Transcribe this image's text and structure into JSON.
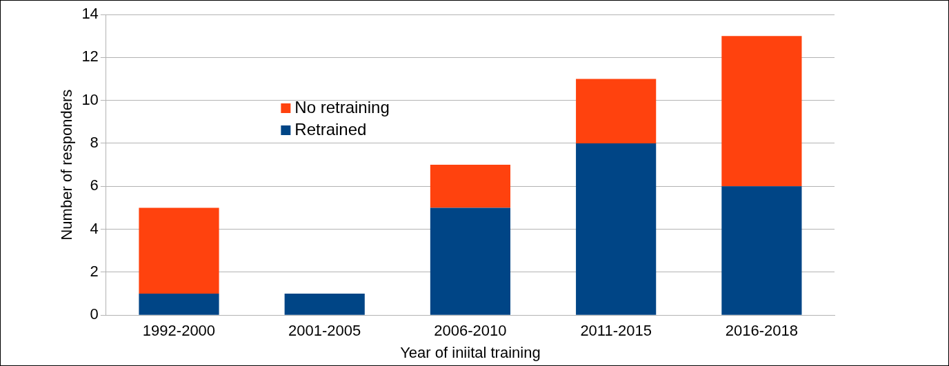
{
  "chart_data": {
    "type": "bar",
    "stacked": true,
    "xlabel": "Year of iniital training",
    "ylabel": "Number of responders",
    "categories": [
      "1992-2000",
      "2001-2005",
      "2006-2010",
      "2011-2015",
      "2016-2018"
    ],
    "series": [
      {
        "name": "Retrained",
        "color": "#004586",
        "values": [
          1,
          1,
          5,
          8,
          6
        ]
      },
      {
        "name": "No retraining",
        "color": "#ff420e",
        "values": [
          4,
          0,
          2,
          3,
          7
        ]
      }
    ],
    "ylim": [
      0,
      14
    ],
    "yticks": [
      0,
      2,
      4,
      6,
      8,
      10,
      12,
      14
    ],
    "grid": "y",
    "legend": "top left"
  }
}
